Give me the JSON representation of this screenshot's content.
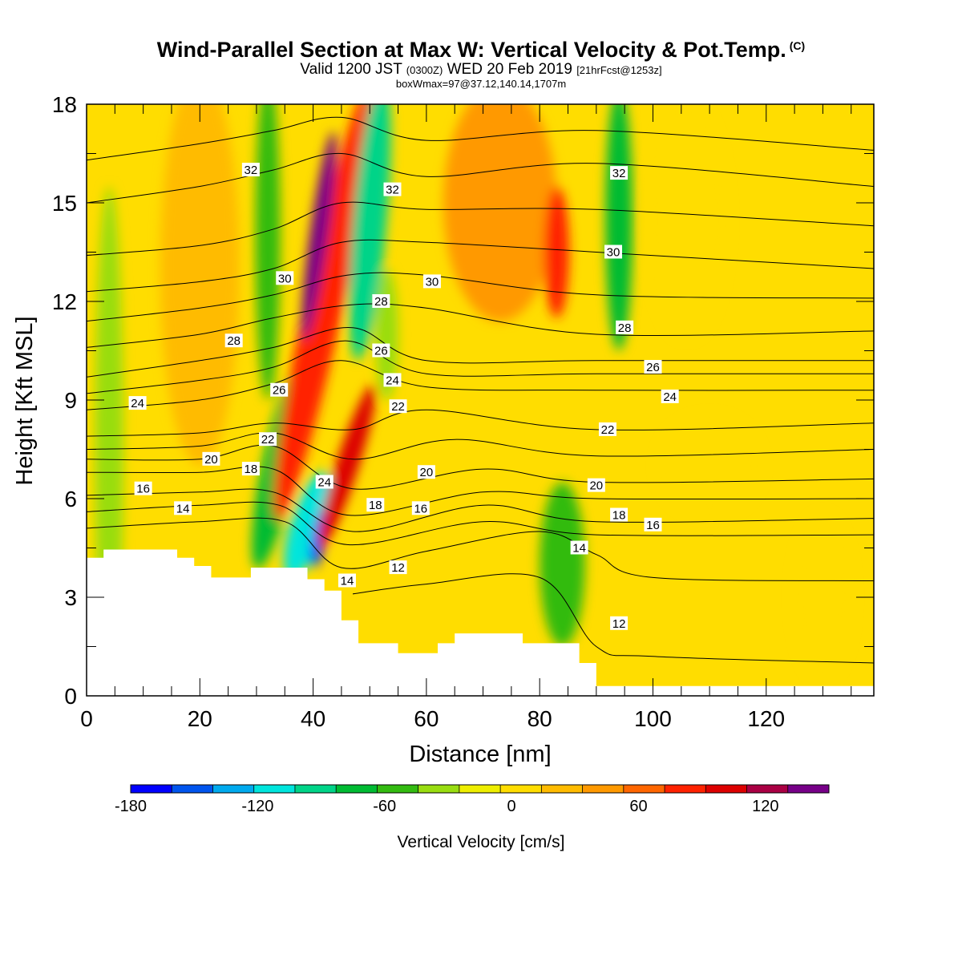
{
  "header": {
    "title": "Wind-Parallel Section at Max W: Vertical Velocity & Pot.Temp.",
    "copyright": "(C)",
    "valid_prefix": "Valid 1200 JST",
    "valid_zulu": "(0300Z)",
    "valid_date": "WED 20 Feb 2019",
    "forecast": "[21hrFcst@1253z]",
    "box_info": "boxWmax=97@37.12,140.14,1707m"
  },
  "chart_data": {
    "type": "heatmap",
    "xlabel": "Distance [nm]",
    "ylabel": "Height [Kft MSL]",
    "xlim": [
      0,
      139
    ],
    "ylim": [
      0,
      18
    ],
    "x_ticks": [
      0,
      20,
      40,
      60,
      80,
      100,
      120
    ],
    "y_ticks": [
      0,
      3,
      6,
      9,
      12,
      15,
      18
    ],
    "terrain": [
      [
        0,
        4.2
      ],
      [
        3,
        4.2
      ],
      [
        3,
        4.45
      ],
      [
        16,
        4.45
      ],
      [
        16,
        4.2
      ],
      [
        19,
        4.2
      ],
      [
        19,
        3.95
      ],
      [
        22,
        3.95
      ],
      [
        22,
        3.6
      ],
      [
        26,
        3.6
      ],
      [
        26,
        3.6
      ],
      [
        29,
        3.6
      ],
      [
        29,
        3.9
      ],
      [
        39,
        3.9
      ],
      [
        39,
        3.55
      ],
      [
        42,
        3.55
      ],
      [
        42,
        3.2
      ],
      [
        45,
        3.2
      ],
      [
        45,
        2.3
      ],
      [
        48,
        2.3
      ],
      [
        48,
        1.6
      ],
      [
        55,
        1.6
      ],
      [
        55,
        1.3
      ],
      [
        62,
        1.3
      ],
      [
        62,
        1.6
      ],
      [
        65,
        1.6
      ],
      [
        65,
        1.9
      ],
      [
        77,
        1.9
      ],
      [
        77,
        1.6
      ],
      [
        87,
        1.6
      ],
      [
        87,
        1.0
      ],
      [
        90,
        1.0
      ],
      [
        90,
        0.3
      ],
      [
        139,
        0.3
      ]
    ],
    "colorbar": {
      "title": "Vertical Velocity [cm/s]",
      "min": -180,
      "max": 150,
      "step": 20,
      "labels": [
        "-180",
        "-120",
        "-60",
        "0",
        "60",
        "120"
      ],
      "label_values": [
        -180,
        -120,
        -60,
        0,
        60,
        120
      ],
      "colors": [
        "#0000ff",
        "#0055ee",
        "#00aaee",
        "#00e5dd",
        "#00d488",
        "#00bb33",
        "#33bb11",
        "#99dd11",
        "#eeee00",
        "#ffdd00",
        "#ffbb00",
        "#ff9900",
        "#ff6600",
        "#ff2200",
        "#dd0000",
        "#aa0044",
        "#770088"
      ]
    },
    "w_field": [
      {
        "cx": 4,
        "cy": 7.5,
        "rx": 2.5,
        "ry": 8,
        "rot": 0,
        "w": -35
      },
      {
        "cx": 32,
        "cy": 14,
        "rx": 2.2,
        "ry": 5,
        "rot": 0,
        "w": -45
      },
      {
        "cx": 34,
        "cy": 7,
        "rx": 3,
        "ry": 3.2,
        "rot": 12,
        "w": -70
      },
      {
        "cx": 39,
        "cy": 5.2,
        "rx": 3,
        "ry": 1.7,
        "rot": 18,
        "w": -120
      },
      {
        "cx": 41,
        "cy": 4.8,
        "rx": 1.2,
        "ry": 0.9,
        "rot": 10,
        "w": -170
      },
      {
        "cx": 20,
        "cy": 13,
        "rx": 7,
        "ry": 6,
        "rot": 0,
        "w": 30
      },
      {
        "cx": 42,
        "cy": 12,
        "rx": 3.4,
        "ry": 6.8,
        "rot": 12,
        "w": 80
      },
      {
        "cx": 41,
        "cy": 14,
        "rx": 1.6,
        "ry": 3.2,
        "rot": 8,
        "w": 140
      },
      {
        "cx": 46,
        "cy": 7,
        "rx": 2,
        "ry": 2.6,
        "rot": 18,
        "w": 100
      },
      {
        "cx": 50,
        "cy": 14.5,
        "rx": 3,
        "ry": 4.3,
        "rot": 5,
        "w": -100
      },
      {
        "cx": 53,
        "cy": 11,
        "rx": 2,
        "ry": 2,
        "rot": 0,
        "w": -40
      },
      {
        "cx": 73,
        "cy": 15,
        "rx": 10,
        "ry": 3.6,
        "rot": 0,
        "w": 45
      },
      {
        "cx": 83,
        "cy": 13.5,
        "rx": 2.2,
        "ry": 2,
        "rot": 0,
        "w": 85
      },
      {
        "cx": 94,
        "cy": 14.5,
        "rx": 2.4,
        "ry": 4,
        "rot": 0,
        "w": -75
      },
      {
        "cx": 84,
        "cy": 4,
        "rx": 4,
        "ry": 2.5,
        "rot": 0,
        "w": -60
      },
      {
        "cx": 106,
        "cy": 14.5,
        "rx": 7,
        "ry": 3.6,
        "rot": 0,
        "w": 10
      },
      {
        "cx": 110,
        "cy": 7,
        "rx": 9,
        "ry": 1.5,
        "rot": 0,
        "w": 12
      },
      {
        "cx": 130,
        "cy": 3,
        "rx": 5,
        "ry": 2.5,
        "rot": 0,
        "w": 14
      }
    ],
    "theta_contours": [
      {
        "label": "12",
        "points": [
          [
            47,
            3.1
          ],
          [
            60,
            3.4
          ],
          [
            80,
            3.6
          ],
          [
            90,
            1.5
          ],
          [
            100,
            1.2
          ],
          [
            139,
            1.0
          ]
        ],
        "label_at": [
          [
            55,
            3.9
          ],
          [
            94,
            2.2
          ]
        ]
      },
      {
        "label": "14",
        "points": [
          [
            0,
            5.1
          ],
          [
            20,
            5.3
          ],
          [
            35,
            5.3
          ],
          [
            45,
            3.9
          ],
          [
            60,
            4.4
          ],
          [
            80,
            5.0
          ],
          [
            90,
            4.3
          ],
          [
            100,
            3.6
          ],
          [
            139,
            3.5
          ]
        ],
        "label_at": [
          [
            17,
            5.7
          ],
          [
            46,
            3.5
          ],
          [
            87,
            4.5
          ]
        ]
      },
      {
        "label": "16",
        "points": [
          [
            0,
            6.1
          ],
          [
            20,
            6.2
          ],
          [
            33,
            6.2
          ],
          [
            47,
            5.0
          ],
          [
            70,
            5.8
          ],
          [
            90,
            5.3
          ],
          [
            139,
            5.4
          ]
        ],
        "label_at": [
          [
            10,
            6.3
          ],
          [
            59,
            5.7
          ],
          [
            100,
            5.2
          ]
        ]
      },
      {
        "label": "18",
        "points": [
          [
            0,
            6.8
          ],
          [
            20,
            6.8
          ],
          [
            33,
            6.9
          ],
          [
            46,
            5.5
          ],
          [
            70,
            6.2
          ],
          [
            90,
            6.0
          ],
          [
            139,
            6.0
          ]
        ],
        "label_at": [
          [
            29,
            6.9
          ],
          [
            51,
            5.8
          ],
          [
            94,
            5.5
          ]
        ]
      },
      {
        "label": "20",
        "points": [
          [
            0,
            7.2
          ],
          [
            20,
            7.2
          ],
          [
            33,
            7.6
          ],
          [
            47,
            6.3
          ],
          [
            70,
            6.9
          ],
          [
            90,
            6.5
          ],
          [
            139,
            6.6
          ]
        ],
        "label_at": [
          [
            22,
            7.2
          ],
          [
            60,
            6.8
          ],
          [
            90,
            6.4
          ]
        ]
      },
      {
        "label": "22",
        "points": [
          [
            0,
            7.9
          ],
          [
            20,
            8.0
          ],
          [
            33,
            8.3
          ],
          [
            47,
            8.1
          ],
          [
            60,
            8.7
          ],
          [
            90,
            8.1
          ],
          [
            139,
            8.3
          ]
        ],
        "label_at": [
          [
            32,
            7.8
          ],
          [
            55,
            8.8
          ],
          [
            92,
            8.1
          ]
        ]
      },
      {
        "label": "24",
        "points": [
          [
            0,
            8.7
          ],
          [
            20,
            9.0
          ],
          [
            33,
            9.5
          ],
          [
            45,
            10.2
          ],
          [
            60,
            9.4
          ],
          [
            90,
            9.3
          ],
          [
            139,
            9.3
          ]
        ],
        "label_at": [
          [
            9,
            8.9
          ],
          [
            42,
            6.5
          ],
          [
            54,
            9.6
          ],
          [
            103,
            9.1
          ]
        ]
      },
      {
        "label": "26",
        "points": [
          [
            0,
            9.7
          ],
          [
            20,
            10.2
          ],
          [
            33,
            10.6
          ],
          [
            47,
            11.2
          ],
          [
            60,
            10.2
          ],
          [
            90,
            10.2
          ],
          [
            139,
            10.2
          ]
        ],
        "label_at": [
          [
            34,
            9.3
          ],
          [
            52,
            10.5
          ],
          [
            100,
            10.0
          ]
        ]
      },
      {
        "label": "28",
        "points": [
          [
            0,
            10.6
          ],
          [
            20,
            11.0
          ],
          [
            33,
            11.5
          ],
          [
            47,
            11.9
          ],
          [
            60,
            11.8
          ],
          [
            90,
            11.0
          ],
          [
            139,
            11.1
          ]
        ],
        "label_at": [
          [
            26,
            10.8
          ],
          [
            52,
            12.0
          ],
          [
            95,
            11.2
          ]
        ]
      },
      {
        "label": "30",
        "points": [
          [
            0,
            12.3
          ],
          [
            20,
            12.6
          ],
          [
            33,
            13.0
          ],
          [
            45,
            13.8
          ],
          [
            60,
            13.8
          ],
          [
            90,
            13.5
          ],
          [
            139,
            13.0
          ]
        ],
        "label_at": [
          [
            35,
            12.7
          ],
          [
            61,
            12.6
          ],
          [
            93,
            13.5
          ]
        ]
      },
      {
        "label": "32",
        "points": [
          [
            0,
            15.0
          ],
          [
            20,
            15.5
          ],
          [
            33,
            16.0
          ],
          [
            45,
            16.5
          ],
          [
            60,
            15.8
          ],
          [
            90,
            16.2
          ],
          [
            139,
            15.5
          ]
        ],
        "label_at": [
          [
            29,
            16.0
          ],
          [
            54,
            15.4
          ],
          [
            94,
            15.9
          ]
        ]
      },
      {
        "label": "",
        "points": [
          [
            0,
            5.6
          ],
          [
            20,
            5.8
          ],
          [
            34,
            5.8
          ],
          [
            46,
            4.6
          ],
          [
            70,
            5.3
          ],
          [
            90,
            4.9
          ],
          [
            139,
            4.9
          ]
        ],
        "label_at": []
      },
      {
        "label": "",
        "points": [
          [
            0,
            7.5
          ],
          [
            20,
            7.6
          ],
          [
            33,
            8.0
          ],
          [
            47,
            7.2
          ],
          [
            65,
            7.8
          ],
          [
            90,
            7.3
          ],
          [
            139,
            7.5
          ]
        ],
        "label_at": []
      },
      {
        "label": "",
        "points": [
          [
            0,
            9.2
          ],
          [
            20,
            9.6
          ],
          [
            33,
            10.0
          ],
          [
            46,
            10.8
          ],
          [
            60,
            9.8
          ],
          [
            90,
            9.8
          ],
          [
            139,
            9.8
          ]
        ],
        "label_at": []
      },
      {
        "label": "",
        "points": [
          [
            0,
            11.4
          ],
          [
            20,
            11.8
          ],
          [
            33,
            12.2
          ],
          [
            46,
            12.8
          ],
          [
            60,
            12.8
          ],
          [
            90,
            12.2
          ],
          [
            139,
            12.1
          ]
        ],
        "label_at": []
      },
      {
        "label": "",
        "points": [
          [
            0,
            13.4
          ],
          [
            20,
            13.7
          ],
          [
            33,
            14.2
          ],
          [
            45,
            15.0
          ],
          [
            60,
            14.8
          ],
          [
            90,
            14.8
          ],
          [
            139,
            14.3
          ]
        ],
        "label_at": []
      },
      {
        "label": "",
        "points": [
          [
            0,
            16.3
          ],
          [
            20,
            16.8
          ],
          [
            33,
            17.2
          ],
          [
            45,
            17.6
          ],
          [
            60,
            16.9
          ],
          [
            90,
            17.2
          ],
          [
            139,
            16.6
          ]
        ],
        "label_at": []
      }
    ]
  }
}
